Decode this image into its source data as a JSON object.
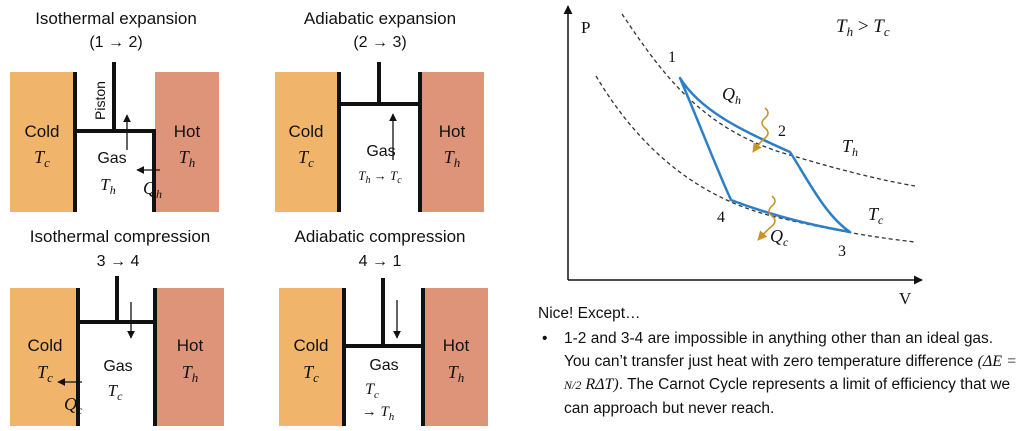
{
  "panels": [
    {
      "title": "Isothermal expansion",
      "step": "(1 → 2)",
      "cold_label": "Cold",
      "cold_symbol": "Tᴄ",
      "hot_label": "Hot",
      "hot_symbol": "Tₕ",
      "piston_label": "Piston",
      "gas_label": "Gas",
      "gas_temp": "Tₕ",
      "heat": "Qₕ"
    },
    {
      "title": "Adiabatic expansion",
      "step": "(2 → 3)",
      "cold_label": "Cold",
      "cold_symbol": "Tc",
      "hot_label": "Hot",
      "hot_symbol": "Th",
      "gas_label": "Gas",
      "gas_temp": "Th → Tc"
    },
    {
      "title": "Isothermal compression",
      "step": "3 → 4",
      "cold_label": "Cold",
      "cold_symbol": "Tc",
      "hot_label": "Hot",
      "hot_symbol": "Th",
      "gas_label": "Gas",
      "gas_temp": "Tc",
      "heat": "Qc"
    },
    {
      "title": "Adiabatic compression",
      "step": "4 → 1",
      "cold_label": "Cold",
      "cold_symbol": "Tc",
      "hot_label": "Hot",
      "hot_symbol": "Th",
      "gas_label": "Gas",
      "gas_temp": "Tc",
      "gas_temp2": "→ Th"
    }
  ],
  "pv": {
    "y_axis": "P",
    "x_axis": "V",
    "condition": "Th > Tc",
    "points": [
      "1",
      "2",
      "3",
      "4"
    ],
    "isotherm_hot": "Th",
    "isotherm_cold": "Tc",
    "heat_in": "Qh",
    "heat_out": "Qc"
  },
  "notes": {
    "lead": "Nice! Except…",
    "bullet_a": "1-2 and 3-4 are impossible in anything other than an ideal gas. You can’t transfer just heat with zero temperature difference",
    "formula": "(ΔE = N/2 RΔT)",
    "bullet_b": ". The Carnot Cycle represents a limit of efficiency that we can approach but never reach."
  },
  "colors": {
    "cold": "#f0b46a",
    "hot": "#de9478",
    "cycle": "#2a7fc8",
    "heat_arrow": "#c8952a"
  }
}
